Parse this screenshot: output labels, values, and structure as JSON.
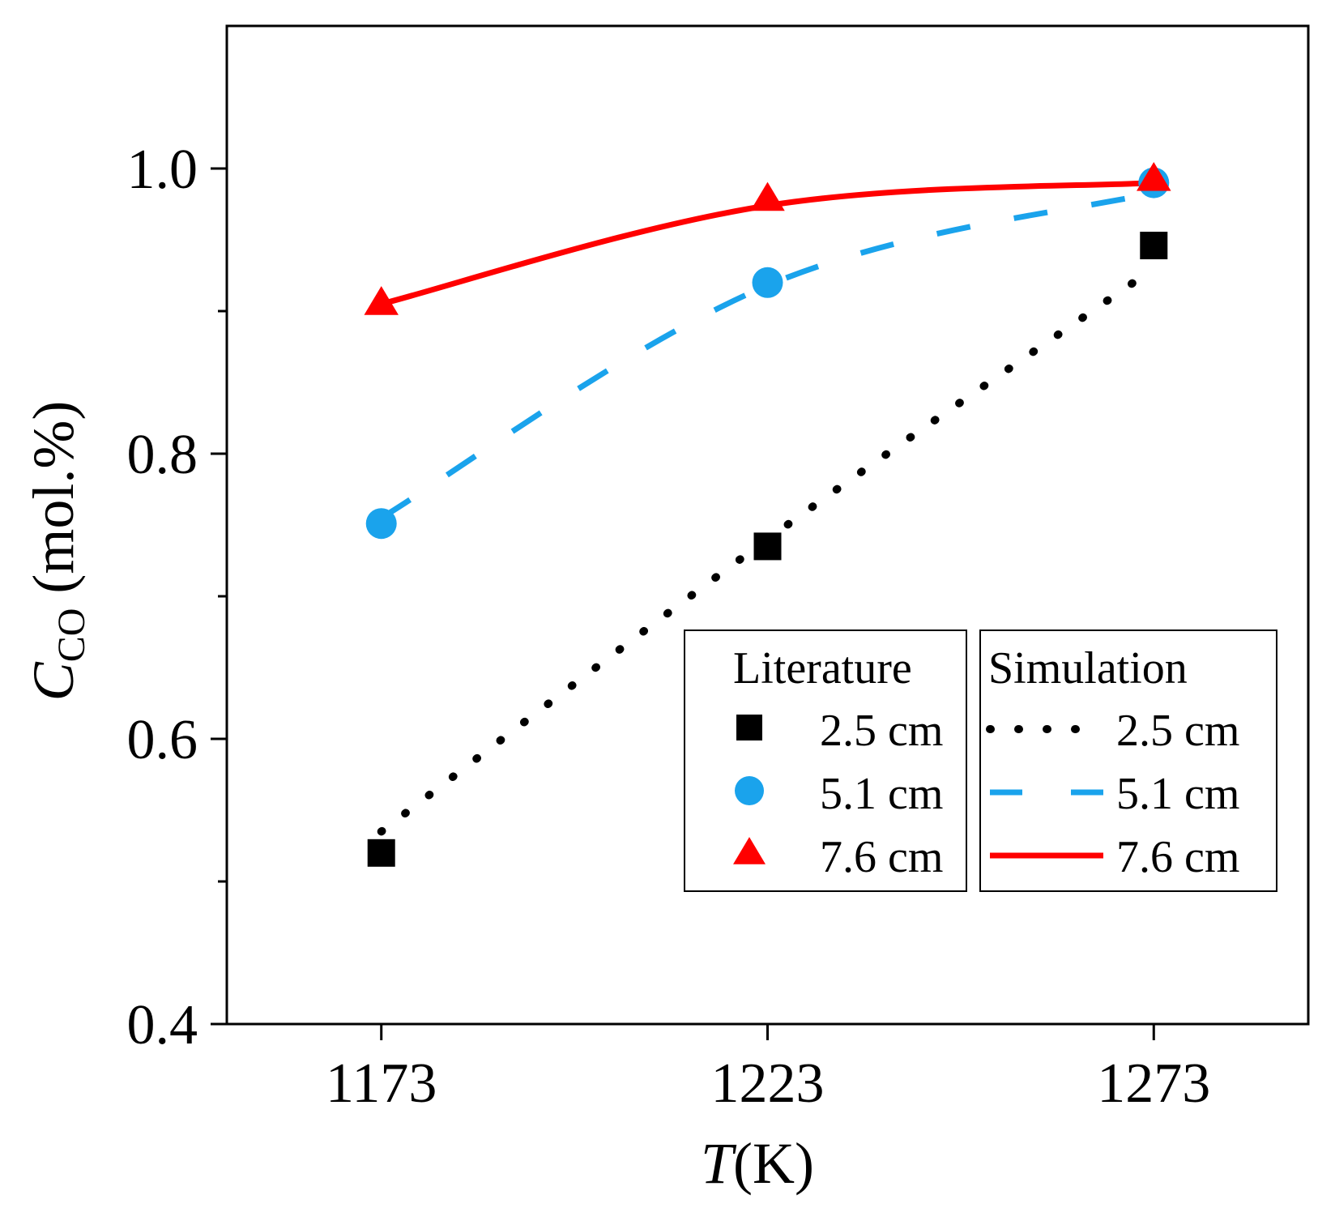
{
  "chart_data": {
    "type": "line",
    "title": "",
    "xlabel": {
      "italic": "T",
      "rest": "(K)"
    },
    "ylabel": {
      "italic": "C",
      "subscript": "CO",
      "rest": " (mol.%)"
    },
    "x": [
      1173,
      1223,
      1273
    ],
    "xlim": [
      1153,
      1293
    ],
    "ylim": [
      0.4,
      1.1
    ],
    "yticks": [
      0.4,
      0.6,
      0.8,
      1.0
    ],
    "ytick_labels": [
      "0.4",
      "0.6",
      "0.8",
      "1.0"
    ],
    "yticks_minor": [
      0.5,
      0.7,
      0.9
    ],
    "xtick_labels": [
      "1173",
      "1223",
      "1273"
    ],
    "grid": false,
    "legend_placement": "bottom-right",
    "legend_headers": {
      "literature": "Literature",
      "simulation": "Simulation"
    },
    "literature": [
      {
        "name": "2.5 cm",
        "marker": "square",
        "color": "#000000",
        "values": [
          0.52,
          0.735,
          0.946
        ]
      },
      {
        "name": "5.1 cm",
        "marker": "circle",
        "color": "#1AA3EC",
        "values": [
          0.751,
          0.92,
          0.99
        ]
      },
      {
        "name": "7.6 cm",
        "marker": "triangle",
        "color": "#FF0000",
        "values": [
          0.905,
          0.978,
          0.992
        ]
      }
    ],
    "simulation": [
      {
        "name": "2.5 cm",
        "line_style": "dotted",
        "color": "#000000",
        "values": [
          0.535,
          0.74,
          0.93
        ]
      },
      {
        "name": "5.1 cm",
        "line_style": "dashed",
        "color": "#1AA3EC",
        "values": [
          0.755,
          0.918,
          0.983
        ]
      },
      {
        "name": "7.6 cm",
        "line_style": "solid",
        "color": "#FF0000",
        "values": [
          0.905,
          0.974,
          0.99
        ]
      }
    ]
  }
}
